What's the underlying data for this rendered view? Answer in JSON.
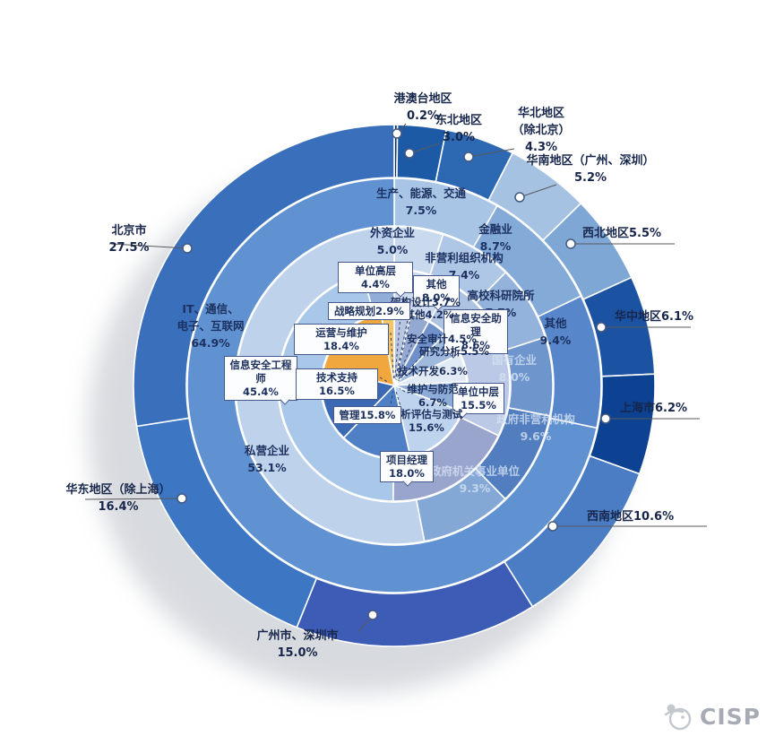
{
  "logo": {
    "text": "CISP"
  },
  "chart_data": {
    "type": "sunburst",
    "unit": "%",
    "legend_position": "none",
    "rings": [
      {
        "name": "region",
        "segments": [
          {
            "label": "港澳台地区",
            "value": 0.2,
            "text": [
              "港澳台地区",
              "0.2%"
            ],
            "color": "#0b2f66"
          },
          {
            "label": "东北地区",
            "value": 3.0,
            "text": [
              "东北地区",
              "3.0%"
            ],
            "color": "#1d5aa6"
          },
          {
            "label": "华北地区（除北京）",
            "value": 4.3,
            "text": [
              "华北地区",
              "（除北京）",
              "4.3%"
            ],
            "color": "#2c69b2"
          },
          {
            "label": "华南地区（广州、深圳）",
            "value": 5.2,
            "text": [
              "华南地区（广州、深圳）",
              "5.2%"
            ],
            "color": "#a6c2e2"
          },
          {
            "label": "西北地区",
            "value": 5.5,
            "text": [
              "西北地区5.5%"
            ],
            "color": "#7fa7d6"
          },
          {
            "label": "华中地区",
            "value": 6.1,
            "text": [
              "华中地区6.1%"
            ],
            "color": "#1b52a2"
          },
          {
            "label": "上海市",
            "value": 6.2,
            "text": [
              "上海市6.2%"
            ],
            "color": "#0d4192"
          },
          {
            "label": "西南地区",
            "value": 10.6,
            "text": [
              "西南地区10.6%"
            ],
            "color": "#4b7dc4"
          },
          {
            "label": "广州市、深圳市",
            "value": 15.0,
            "text": [
              "广州市、深圳市",
              "15.0%"
            ],
            "color": "#3d5cb5"
          },
          {
            "label": "华东地区（除上海）",
            "value": 16.4,
            "text": [
              "华东地区（除上海）",
              "16.4%"
            ],
            "color": "#3d77c3"
          },
          {
            "label": "北京市",
            "value": 27.5,
            "text": [
              "北京市",
              "27.5%"
            ],
            "color": "#3a70bb"
          }
        ]
      },
      {
        "name": "industry",
        "segments": [
          {
            "label": "生产、能源、交通",
            "value": 7.5,
            "text": [
              "生产、能源、交通",
              "7.5%"
            ],
            "color": "#a9c5e5"
          },
          {
            "label": "金融业",
            "value": 8.7,
            "text": [
              "金融业",
              "8.7%"
            ],
            "color": "#84aad8"
          },
          {
            "label": "其他",
            "value": 9.4,
            "text": [
              "其他",
              "9.4%"
            ],
            "color": "#5886ca"
          },
          {
            "label": "IT、通信、电子、互联网",
            "value": 64.9,
            "text": [
              "IT、通信、",
              "电子、互联网",
              "64.9%"
            ],
            "color": "#6092d2"
          }
        ]
      },
      {
        "name": "employer",
        "segments": [
          {
            "label": "外资企业",
            "value": 5.0,
            "text": [
              "外资企业",
              "5.0%"
            ],
            "color": "#c9d9ee"
          },
          {
            "label": "非营利组织机构",
            "value": 7.4,
            "text": [
              "非营利组织机构",
              "7.4%"
            ],
            "color": "#afc7e6"
          },
          {
            "label": "高校科研院所",
            "value": 7.7,
            "text": [
              "高校科研院所",
              "7.7%"
            ],
            "color": "#93b3dc"
          },
          {
            "label": "国有企业",
            "value": 8.0,
            "text": [
              "国有企业",
              "8.0%"
            ],
            "color": "#6e96cc"
          },
          {
            "label": "政府非营利机构",
            "value": 9.6,
            "text": [
              "政府非营利机构",
              "9.6%"
            ],
            "color": "#527ec0"
          },
          {
            "label": "政府机关事业单位",
            "value": 9.3,
            "text": [
              "政府机关事业单位",
              "9.3%"
            ],
            "color": "#84a8d6"
          },
          {
            "label": "私营企业",
            "value": 53.1,
            "text": [
              "私营企业",
              "53.1%"
            ],
            "color": "#bed2ec"
          }
        ]
      },
      {
        "name": "job-level",
        "segments": [
          {
            "label": "其他",
            "value": 8.0,
            "text": [
              "其他8.0%"
            ],
            "color": "#ccd9ee"
          },
          {
            "label": "信息安全助理",
            "value": 8.6,
            "text": [
              "信息安全助理",
              "8.6%"
            ],
            "color": "#aec2e2"
          },
          {
            "label": "单位中层",
            "value": 15.5,
            "text": [
              "单位中层",
              "15.5%"
            ],
            "color": "#bcc9e6"
          },
          {
            "label": "项目经理",
            "value": 18.0,
            "text": [
              "项目经理",
              "18.0%"
            ],
            "color": "#9aa5ce"
          },
          {
            "label": "信息安全工程师",
            "value": 45.4,
            "text": [
              "信息安全工程师",
              "45.4%"
            ],
            "color": "#a9c7e8"
          },
          {
            "label": "单位高层",
            "value": 4.4,
            "text": [
              "单位高层4.4%"
            ],
            "color": "#92add8"
          }
        ]
      },
      {
        "name": "job-function",
        "segments": [
          {
            "label": "架构设计",
            "value": 3.7,
            "text": [
              "架构设计3.7%"
            ],
            "color": "#b9c6e2"
          },
          {
            "label": "其他",
            "value": 4.2,
            "text": [
              "其他4.2%"
            ],
            "color": "#93a9d2"
          },
          {
            "label": "安全审计",
            "value": 4.5,
            "text": [
              "安全审计4.5%"
            ],
            "color": "#7090ca"
          },
          {
            "label": "研究分析",
            "value": 5.5,
            "text": [
              "研究分析5.5%"
            ],
            "color": "#a0bade"
          },
          {
            "label": "技术开发",
            "value": 6.3,
            "text": [
              "技术开发6.3%"
            ],
            "color": "#e2eaf6"
          },
          {
            "label": "维护与防范",
            "value": 6.7,
            "text": [
              "维护与防范",
              "6.7%"
            ],
            "color": "#8cabd6"
          },
          {
            "label": "分析评估与测试",
            "value": 15.6,
            "text": [
              "分析评估与测试",
              "15.6%"
            ],
            "color": "#bdd3ee"
          },
          {
            "label": "管理",
            "value": 15.8,
            "text": [
              "管理15.8%"
            ],
            "color": "#4f80c5"
          },
          {
            "label": "技术支持",
            "value": 16.5,
            "text": [
              "技术支持16.5%"
            ],
            "color": "#3b69b3"
          },
          {
            "label": "运营与维护",
            "value": 18.4,
            "text": [
              "运营与维护18.4%"
            ],
            "color": "#f0a83e"
          },
          {
            "label": "战略规划",
            "value": 2.9,
            "text": [
              "战略规划2.9%"
            ],
            "color": "#f4c468"
          }
        ]
      }
    ]
  }
}
